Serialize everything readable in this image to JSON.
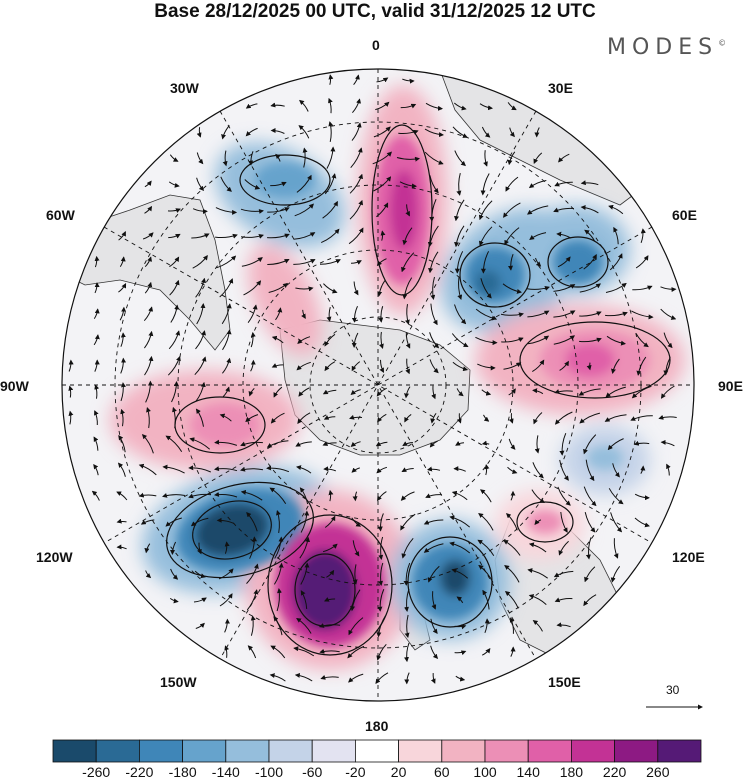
{
  "title": "Base 28/12/2025 00 UTC, valid 31/12/2025 12 UTC",
  "brand": {
    "name": "MODES",
    "mark": "©"
  },
  "longitude_labels": {
    "lon_0": "0",
    "lon_30e": "30E",
    "lon_60e": "60E",
    "lon_90e": "90E",
    "lon_120e": "120E",
    "lon_150e": "150E",
    "lon_180": "180",
    "lon_150w": "150W",
    "lon_120w": "120W",
    "lon_90w": "90W",
    "lon_60w": "60W",
    "lon_30w": "30W"
  },
  "reference_vector": {
    "label": "30"
  },
  "colorbar": {
    "labels": [
      "-260",
      "-220",
      "-180",
      "-140",
      "-100",
      "-60",
      "-20",
      "20",
      "60",
      "100",
      "140",
      "180",
      "220",
      "260"
    ],
    "colors": [
      "#1a4a6b",
      "#2a6a95",
      "#3f86b8",
      "#66a3cc",
      "#95bedc",
      "#c4d3e8",
      "#e3e3f1",
      "#ffffff",
      "#f8d6db",
      "#f2b3c2",
      "#ec8fb6",
      "#e060a8",
      "#c33295",
      "#8d1a83",
      "#551a76"
    ]
  },
  "chart_data": {
    "type": "heatmap",
    "projection": "south polar stereographic",
    "title": "Base 28/12/2025 00 UTC, valid 31/12/2025 12 UTC",
    "field_units_range": [
      -260,
      260
    ],
    "anomaly_centers": [
      {
        "name": "positive-center-south-atlantic",
        "lon": 5,
        "value": 240
      },
      {
        "name": "negative-center-indian-ocean-west",
        "lon": 45,
        "value": -180
      },
      {
        "name": "negative-center-indian-ocean-east",
        "lon": 60,
        "value": -160
      },
      {
        "name": "positive-center-south-indian",
        "lon": 95,
        "value": 200
      },
      {
        "name": "positive-center-tasman",
        "lon": 130,
        "value": 120
      },
      {
        "name": "negative-center-south-pacific-west",
        "lon": 160,
        "value": -220
      },
      {
        "name": "positive-center-south-pacific",
        "lon": -160,
        "value": 280
      },
      {
        "name": "negative-center-south-pacific-east",
        "lon": -130,
        "value": -280
      },
      {
        "name": "positive-center-amundsen",
        "lon": -100,
        "value": 140
      },
      {
        "name": "negative-center-weddell",
        "lon": -20,
        "value": -120
      },
      {
        "name": "positive-center-drake",
        "lon": -45,
        "value": 100
      }
    ]
  }
}
